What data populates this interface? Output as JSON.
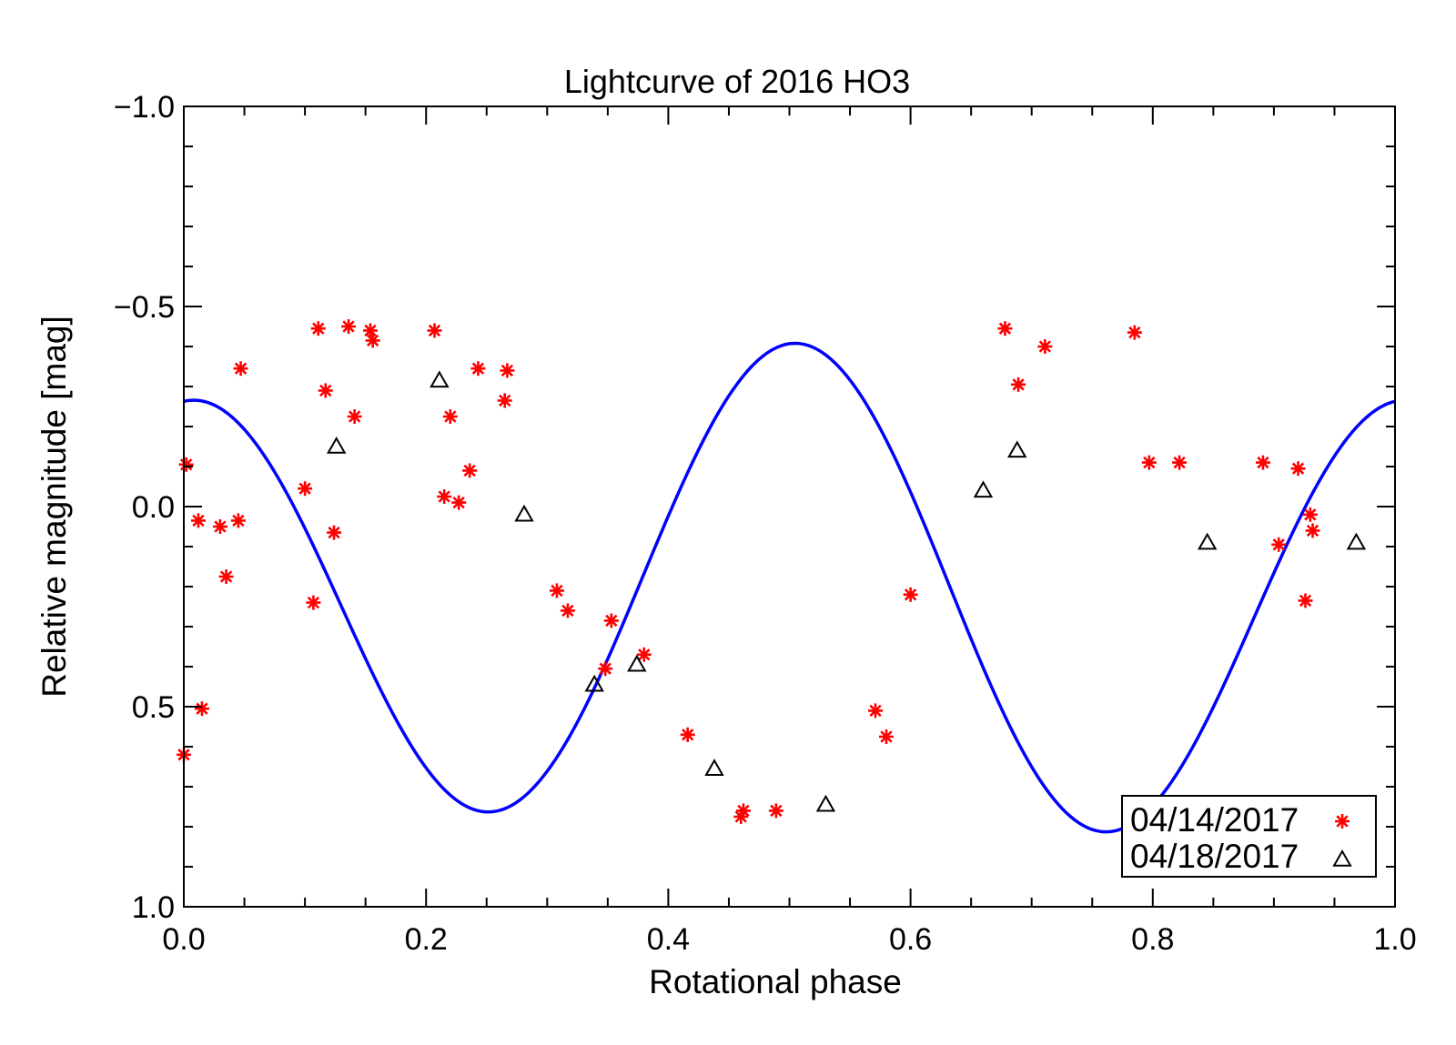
{
  "chart_data": {
    "type": "scatter",
    "title": "Lightcurve of 2016 HO3",
    "xlabel": "Rotational phase",
    "ylabel": "Relative magnitude [mag]",
    "xlim": [
      0.0,
      1.0
    ],
    "ylim": [
      1.0,
      -1.0
    ],
    "y_inverted": true,
    "grid": false,
    "legend_position": "bottom-right",
    "x_ticks": [
      "0.0",
      "0.2",
      "0.4",
      "0.6",
      "0.8",
      "1.0"
    ],
    "x_tick_values": [
      0.0,
      0.2,
      0.4,
      0.6,
      0.8,
      1.0
    ],
    "y_ticks": [
      "-1.0",
      "-0.5",
      "0.0",
      "0.5",
      "1.0"
    ],
    "y_tick_values": [
      -1.0,
      -0.5,
      0.0,
      0.5,
      1.0
    ],
    "series": [
      {
        "name": "04/14/2017",
        "marker": "asterisk",
        "color": "#ff0000",
        "points": [
          [
            0.002,
            -0.105
          ],
          [
            0.0,
            0.62
          ],
          [
            0.012,
            0.035
          ],
          [
            0.015,
            0.505
          ],
          [
            0.03,
            0.05
          ],
          [
            0.035,
            0.175
          ],
          [
            0.045,
            0.035
          ],
          [
            0.047,
            -0.345
          ],
          [
            0.1,
            -0.045
          ],
          [
            0.107,
            0.24
          ],
          [
            0.111,
            -0.445
          ],
          [
            0.117,
            -0.29
          ],
          [
            0.124,
            0.065
          ],
          [
            0.136,
            -0.45
          ],
          [
            0.141,
            -0.225
          ],
          [
            0.154,
            -0.44
          ],
          [
            0.156,
            -0.415
          ],
          [
            0.207,
            -0.44
          ],
          [
            0.215,
            -0.025
          ],
          [
            0.22,
            -0.225
          ],
          [
            0.227,
            -0.01
          ],
          [
            0.236,
            -0.09
          ],
          [
            0.243,
            -0.345
          ],
          [
            0.265,
            -0.265
          ],
          [
            0.267,
            -0.34
          ],
          [
            0.308,
            0.21
          ],
          [
            0.317,
            0.26
          ],
          [
            0.348,
            0.405
          ],
          [
            0.353,
            0.285
          ],
          [
            0.38,
            0.37
          ],
          [
            0.416,
            0.57
          ],
          [
            0.46,
            0.775
          ],
          [
            0.462,
            0.76
          ],
          [
            0.489,
            0.76
          ],
          [
            0.571,
            0.51
          ],
          [
            0.58,
            0.575
          ],
          [
            0.6,
            0.22
          ],
          [
            0.678,
            -0.445
          ],
          [
            0.689,
            -0.305
          ],
          [
            0.711,
            -0.4
          ],
          [
            0.785,
            -0.435
          ],
          [
            0.797,
            -0.11
          ],
          [
            0.822,
            -0.11
          ],
          [
            0.891,
            -0.11
          ],
          [
            0.904,
            0.095
          ],
          [
            0.92,
            -0.095
          ],
          [
            0.926,
            0.235
          ],
          [
            0.93,
            0.02
          ],
          [
            0.932,
            0.06
          ]
        ]
      },
      {
        "name": "04/18/2017",
        "marker": "triangle",
        "color": "#000000",
        "points": [
          [
            0.126,
            -0.15
          ],
          [
            0.211,
            -0.315
          ],
          [
            0.281,
            0.02
          ],
          [
            0.339,
            0.445
          ],
          [
            0.374,
            0.395
          ],
          [
            0.438,
            0.655
          ],
          [
            0.53,
            0.745
          ],
          [
            0.66,
            -0.04
          ],
          [
            0.688,
            -0.14
          ],
          [
            0.845,
            0.09
          ],
          [
            0.968,
            0.09
          ]
        ]
      }
    ],
    "fit_curve": {
      "color": "#0000ff",
      "type": "fourier",
      "mean": 0.225,
      "a1": 0.072,
      "b1": -0.022,
      "a2": -0.56,
      "b2": -0.045
    }
  }
}
